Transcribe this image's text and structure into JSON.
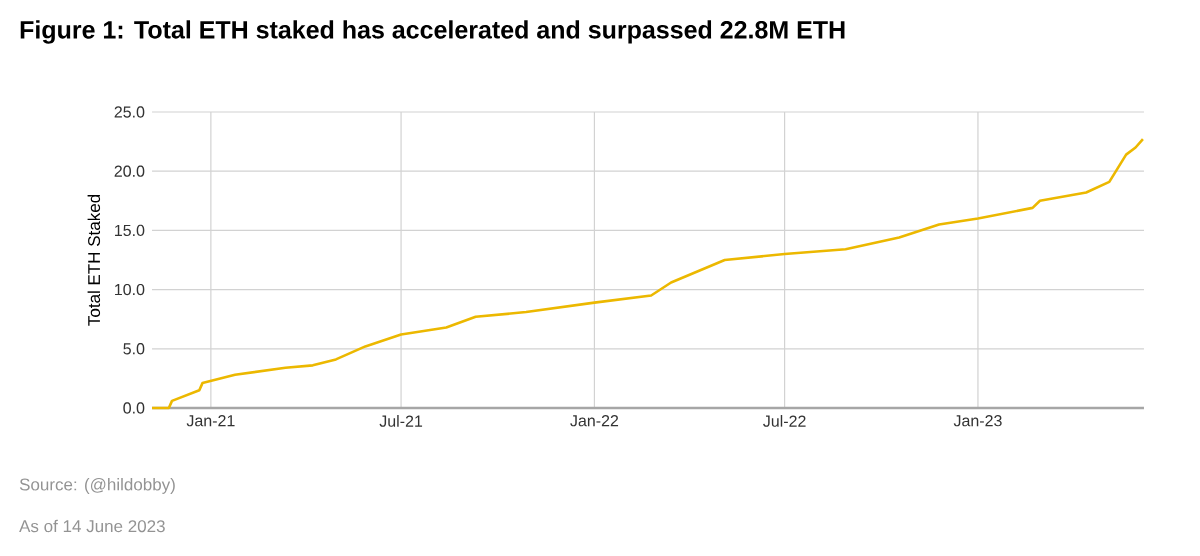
{
  "chart_data": {
    "type": "line",
    "title": "Figure 1: Total ETH staked has accelerated and surpassed 22.8M ETH",
    "ylabel": "Total ETH Staked",
    "annotations": [
      "Source: (@hildobby)",
      "As of 14 June 2023"
    ],
    "x": [
      "2020-11-06",
      "2020-11-22",
      "2020-11-25",
      "2020-12-21",
      "2020-12-24",
      "2021-01-24",
      "2021-03-13",
      "2021-04-08",
      "2021-04-30",
      "2021-05-28",
      "2021-07-01",
      "2021-08-13",
      "2021-09-10",
      "2021-10-28",
      "2022-01-01",
      "2022-02-24",
      "2022-03-15",
      "2022-05-05",
      "2022-07-01",
      "2022-08-28",
      "2022-10-18",
      "2022-11-25",
      "2023-01-01",
      "2023-02-22",
      "2023-03-01",
      "2023-04-14",
      "2023-05-06",
      "2023-05-22",
      "2023-05-31",
      "2023-06-07"
    ],
    "series": [
      {
        "color": "#ecb800",
        "values": [
          0,
          0,
          0.6,
          1.5,
          2.1,
          2.8,
          3.4,
          3.6,
          4.1,
          5.2,
          6.2,
          6.8,
          7.7,
          8.1,
          8.9,
          9.5,
          10.6,
          12.5,
          13.0,
          13.4,
          14.4,
          15.5,
          16.0,
          16.9,
          17.5,
          18.2,
          19.1,
          21.4,
          22.0,
          22.7
        ]
      }
    ],
    "xlim": [
      "2020-11-06",
      "2023-06-08"
    ],
    "xticks": [
      {
        "value": "2021-01-01",
        "label": "Jan-21"
      },
      {
        "value": "2021-07-01",
        "label": "Jul-21"
      },
      {
        "value": "2022-01-01",
        "label": "Jan-22"
      },
      {
        "value": "2022-07-01",
        "label": "Jul-22"
      },
      {
        "value": "2023-01-01",
        "label": "Jan-23"
      }
    ],
    "ylim": [
      0,
      25
    ],
    "yticks": [
      {
        "value": 0,
        "label": "0.0"
      },
      {
        "value": 5,
        "label": "5.0"
      },
      {
        "value": 10,
        "label": "10.0"
      },
      {
        "value": 15,
        "label": "15.0"
      },
      {
        "value": 20,
        "label": "20.0"
      },
      {
        "value": 25,
        "label": "25.0"
      }
    ],
    "grid": true,
    "marker": "none",
    "line_style": "solid"
  }
}
